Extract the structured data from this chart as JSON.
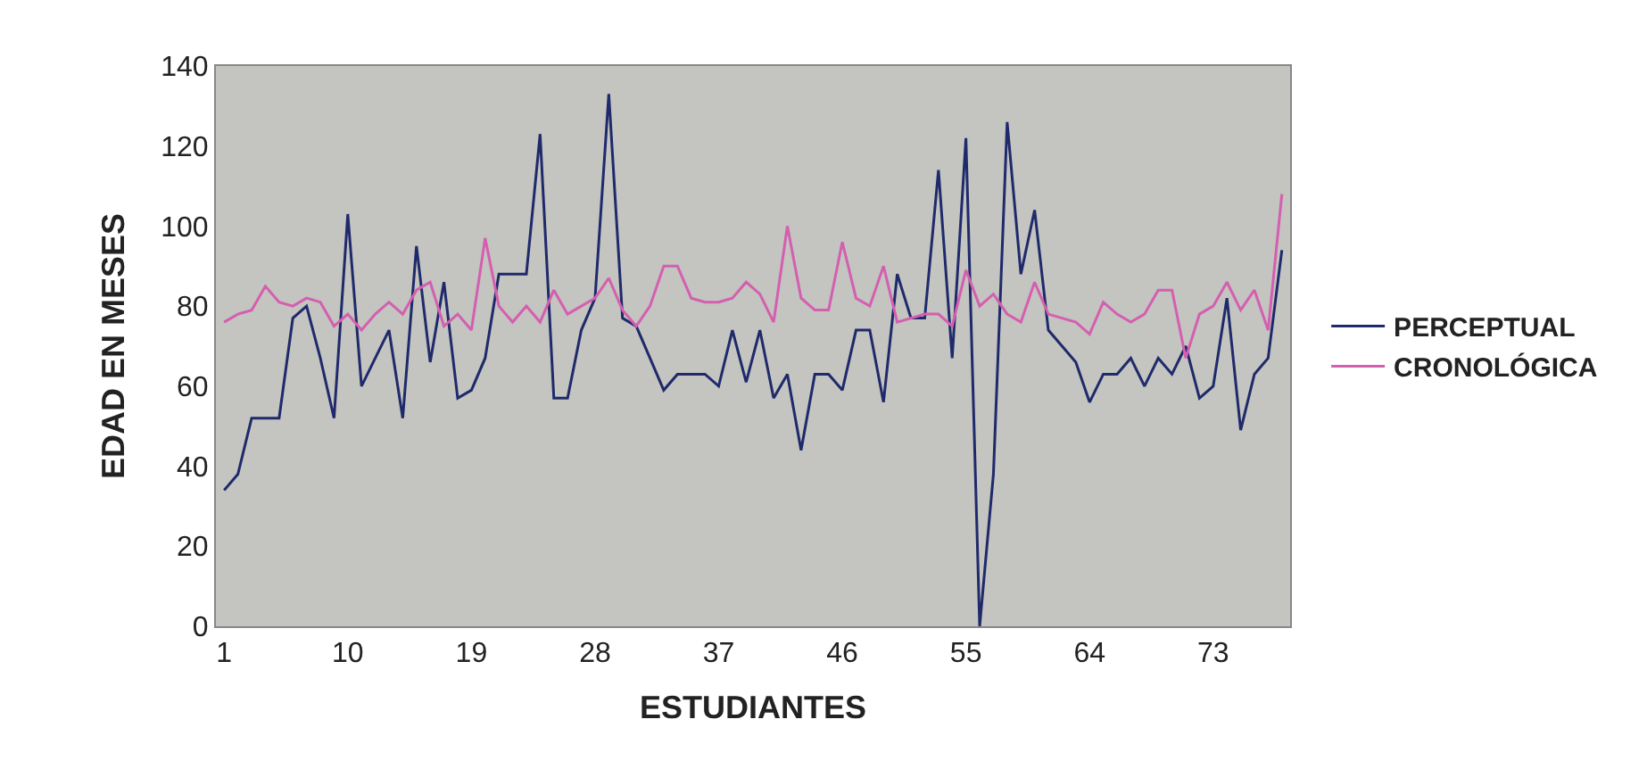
{
  "chart_data": {
    "type": "line",
    "xlabel": "ESTUDIANTES",
    "ylabel": "EDAD EN MESES",
    "x": [
      1,
      2,
      3,
      4,
      5,
      6,
      7,
      8,
      9,
      10,
      11,
      12,
      13,
      14,
      15,
      16,
      17,
      18,
      19,
      20,
      21,
      22,
      23,
      24,
      25,
      26,
      27,
      28,
      29,
      30,
      31,
      32,
      33,
      34,
      35,
      36,
      37,
      38,
      39,
      40,
      41,
      42,
      43,
      44,
      45,
      46,
      47,
      48,
      49,
      50,
      51,
      52,
      53,
      54,
      55,
      56,
      57,
      58,
      59,
      60,
      61,
      62,
      63,
      64,
      65,
      66,
      67,
      68,
      69,
      70,
      71,
      72,
      73,
      74,
      75,
      76,
      77,
      78
    ],
    "series": [
      {
        "name": "PERCEPTUAL",
        "color": "#1f2a6b",
        "values": [
          34,
          38,
          52,
          52,
          52,
          77,
          80,
          67,
          52,
          103,
          60,
          67,
          74,
          52,
          95,
          66,
          86,
          57,
          59,
          67,
          88,
          88,
          88,
          123,
          57,
          57,
          74,
          82,
          133,
          77,
          75,
          67,
          59,
          63,
          63,
          63,
          60,
          74,
          61,
          74,
          57,
          63,
          44,
          63,
          63,
          59,
          74,
          74,
          56,
          88,
          77,
          77,
          114,
          67,
          122,
          0,
          38,
          126,
          88,
          104,
          74,
          70,
          66,
          56,
          63,
          63,
          67,
          60,
          67,
          63,
          70,
          57,
          60,
          82,
          49,
          63,
          67,
          94
        ]
      },
      {
        "name": "CRONOLÓGICA",
        "color": "#d45fb0",
        "values": [
          76,
          78,
          79,
          85,
          81,
          80,
          82,
          81,
          75,
          78,
          74,
          78,
          81,
          78,
          84,
          86,
          75,
          78,
          74,
          97,
          80,
          76,
          80,
          76,
          84,
          78,
          80,
          82,
          87,
          79,
          75,
          80,
          90,
          90,
          82,
          81,
          81,
          82,
          86,
          83,
          76,
          100,
          82,
          79,
          79,
          96,
          82,
          80,
          90,
          76,
          77,
          78,
          78,
          75,
          89,
          80,
          83,
          78,
          76,
          86,
          78,
          77,
          76,
          73,
          81,
          78,
          76,
          78,
          84,
          84,
          67,
          78,
          80,
          86,
          79,
          84,
          74,
          108
        ]
      }
    ],
    "xlim": [
      0.4,
      78.6
    ],
    "xticks": [
      1,
      10,
      19,
      28,
      37,
      46,
      55,
      64,
      73
    ],
    "ylim": [
      0,
      140
    ],
    "yticks": [
      0,
      20,
      40,
      60,
      80,
      100,
      120,
      140
    ],
    "grid": false,
    "legend": "right",
    "marker": "none",
    "line_style": "solid"
  }
}
